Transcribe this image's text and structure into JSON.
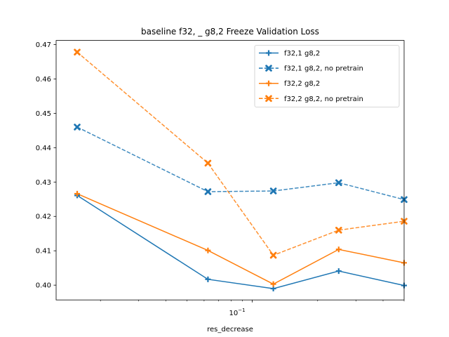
{
  "chart_data": {
    "type": "line",
    "title": "baseline f32, _ g8,2 Freeze Validation Loss",
    "xlabel": "res_decrease",
    "ylabel": "",
    "x_scale": "log",
    "x_tick_label": "10",
    "x_tick_exponent": "−1",
    "xlim": [
      0.0125,
      0.5
    ],
    "ylim": [
      0.3957,
      0.4712
    ],
    "y_ticks": [
      0.4,
      0.41,
      0.42,
      0.43,
      0.44,
      0.45,
      0.46,
      0.47
    ],
    "y_tick_labels": [
      "0.40",
      "0.41",
      "0.42",
      "0.43",
      "0.44",
      "0.45",
      "0.46",
      "0.47"
    ],
    "grid": false,
    "legend_position": "top-right",
    "x": [
      0.015625,
      0.0625,
      0.125,
      0.25,
      0.5
    ],
    "series": [
      {
        "name": "f32,1 g8,2",
        "color": "#1f77b4",
        "style": "solid",
        "marker": "plus",
        "values": [
          0.4261,
          0.4017,
          0.399,
          0.4041,
          0.3999
        ]
      },
      {
        "name": "f32,1 g8,2, no pretrain",
        "color": "#1f77b4",
        "style": "dashed",
        "marker": "x",
        "values": [
          0.446,
          0.4272,
          0.4274,
          0.4298,
          0.4249
        ]
      },
      {
        "name": "f32,2 g8,2",
        "color": "#ff7f0e",
        "style": "solid",
        "marker": "plus",
        "values": [
          0.4266,
          0.4101,
          0.4003,
          0.4104,
          0.4065
        ]
      },
      {
        "name": "f32,2 g8,2, no pretrain",
        "color": "#ff7f0e",
        "style": "dashed",
        "marker": "x",
        "values": [
          0.4678,
          0.4355,
          0.4087,
          0.416,
          0.4186
        ]
      }
    ]
  }
}
